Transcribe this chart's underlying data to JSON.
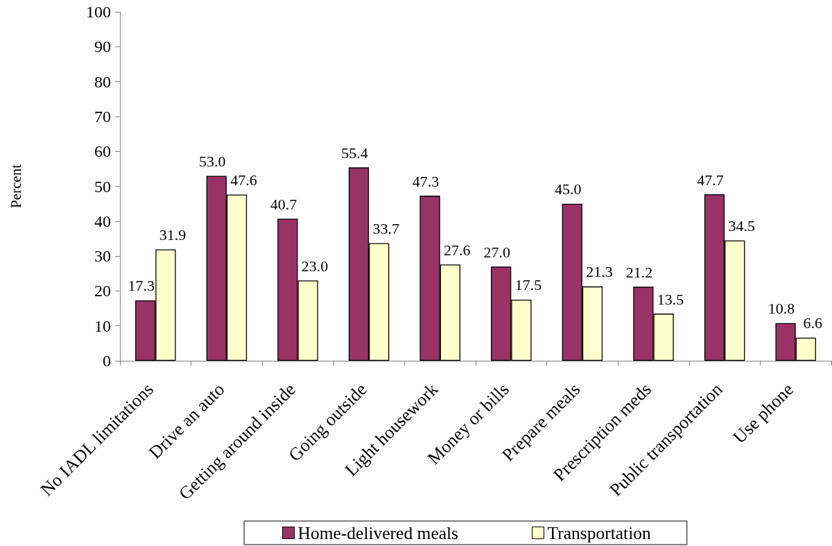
{
  "chart_data": {
    "type": "bar",
    "ylabel": "Percent",
    "categories": [
      "No IADL limitations",
      "Drive an auto",
      "Getting around inside",
      "Going outside",
      "Light housework",
      "Money or bills",
      "Prepare meals",
      "Prescription meds",
      "Public transportation",
      "Use phone"
    ],
    "series": [
      {
        "name": "Home-delivered meals",
        "color": "#993366",
        "values": [
          17.3,
          53.0,
          40.7,
          55.4,
          47.3,
          27.0,
          45.0,
          21.2,
          47.7,
          10.8
        ],
        "value_labels": [
          "17.3",
          "53.0",
          "40.7",
          "55.4",
          "47.3",
          "27.0",
          "45.0",
          "21.2",
          "47.7",
          "10.8"
        ]
      },
      {
        "name": "Transportation",
        "color": "#ffffcc",
        "values": [
          31.9,
          47.6,
          23.0,
          33.7,
          27.6,
          17.5,
          21.3,
          13.5,
          34.5,
          6.6
        ],
        "value_labels": [
          "31.9",
          "47.6",
          "23.0",
          "33.7",
          "27.6",
          "17.5",
          "21.3",
          "13.5",
          "34.5",
          "6.6"
        ]
      }
    ],
    "ylim": [
      0,
      100
    ],
    "yticks": [
      0,
      10,
      20,
      30,
      40,
      50,
      60,
      70,
      80,
      90,
      100
    ],
    "legend": "bottom"
  }
}
